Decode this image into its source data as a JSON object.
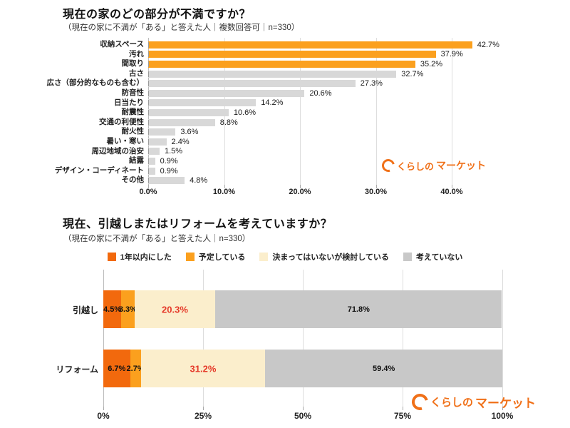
{
  "brand": {
    "logo_prefix": "くらしの",
    "logo_suffix": "マーケット",
    "color": "#f07018"
  },
  "chart_data": [
    {
      "type": "bar",
      "orientation": "horizontal",
      "title": "現在の家のどの部分が不満ですか？",
      "subtitle": "（現在の家に不満が「ある」と答えた人｜複数回答可｜n=330）",
      "categories": [
        "収納スペース",
        "汚れ",
        "間取り",
        "古さ",
        "広さ（部分的なものも含む）",
        "防音性",
        "日当たり",
        "耐震性",
        "交通の利便性",
        "耐火性",
        "暑い・寒い",
        "周辺地域の治安",
        "結露",
        "デザイン・コーディネート",
        "その他"
      ],
      "values": [
        42.7,
        37.9,
        35.2,
        32.7,
        27.3,
        20.6,
        14.2,
        10.6,
        8.8,
        3.6,
        2.4,
        1.5,
        0.9,
        0.9,
        4.8
      ],
      "highlight_count": 3,
      "highlight_color": "#fba01e",
      "bar_color": "#d8d8d8",
      "xlim": [
        0,
        40
      ],
      "x_ticks": [
        "0.0%",
        "10.0%",
        "20.0%",
        "30.0%",
        "40.0%"
      ],
      "grid": true,
      "n": 330
    },
    {
      "type": "bar",
      "subtype": "stacked-horizontal",
      "title": "現在、引越しまたはリフォームを考えていますか？",
      "subtitle": "（現在の家に不満が「ある」と答えた人｜n=330）",
      "categories": [
        "引越し",
        "リフォーム"
      ],
      "series": [
        {
          "name": "1年以内にした",
          "color": "#f2690d",
          "values": [
            4.5,
            6.7
          ],
          "emphasis": false
        },
        {
          "name": "予定している",
          "color": "#fba01e",
          "values": [
            3.3,
            2.7
          ],
          "emphasis": false
        },
        {
          "name": "決まってはいないが検討している",
          "color": "#fbeecc",
          "values": [
            20.3,
            31.2
          ],
          "emphasis": true
        },
        {
          "name": "考えていない",
          "color": "#c8c8c8",
          "values": [
            71.8,
            59.4
          ],
          "emphasis": false
        }
      ],
      "emphasis_color": "#e53828",
      "xlim": [
        0,
        100
      ],
      "x_ticks": [
        "0%",
        "25%",
        "50%",
        "75%",
        "100%"
      ],
      "grid": true,
      "legend_position": "top",
      "n": 330
    }
  ]
}
